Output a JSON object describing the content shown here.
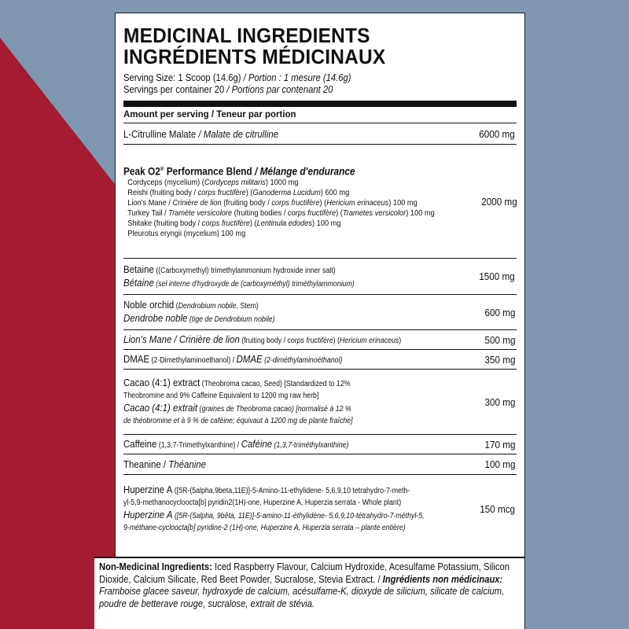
{
  "colors": {
    "background_blue": "#7f97b1",
    "background_red": "#a51c30",
    "label_bg": "#ffffff",
    "ink": "#111111"
  },
  "title_en": "MEDICINAL INGREDIENTS",
  "title_fr": "INGRÉDIENTS MÉDICINAUX",
  "serving_size_en": "Serving Size: 1 Scoop (14.6g)",
  "serving_size_fr": " / Portion : 1 mesure (14.6g)",
  "servings_en": "Servings per container 20",
  "servings_fr": " / Portions par contenant 20",
  "amount_header": "Amount per serving / Teneur par portion",
  "rows": {
    "citrulline": {
      "en": "L-Citrulline Malate",
      "fr": " / Malate de citrulline",
      "amount": "6000 mg"
    },
    "peak": {
      "title_en": "Peak O2",
      "title_mark": "®",
      "title_rest": " Performance Blend",
      "title_fr": " / Mélange d'endurance",
      "amount": "2000 mg",
      "items": [
        {
          "a": "Cordyceps (mycelium) (",
          "b": "Cordyceps militaris",
          "c": ") 1000 mg"
        },
        {
          "a": "Reishi (fruiting body / ",
          "b": "corps fructifère",
          "c": ") (",
          "d": "Ganoderma Lucidum",
          "e": ") 600 mg"
        },
        {
          "a": "Lion's Mane / ",
          "b": "Crinière de lion",
          "c": " (fruiting body / ",
          "d": "corps fructifère",
          "e": ") (",
          "f": "Hericium erinaceus",
          "g": ") 100 mg"
        },
        {
          "a": "Turkey Tail / ",
          "b": "Tramète versicolore",
          "c": " (fruiting bodies / ",
          "d": "corps fructifère",
          "e": ") (",
          "f": "Trametes versicolor",
          "g": ") 100 mg"
        },
        {
          "a": "Shitake (fruiting body / ",
          "b": "corps fructifère",
          "c": ") (",
          "d": "Lentinula edodes",
          "e": ") 100 mg"
        },
        {
          "a": "Pleurotus eryngii (mycelium) 100 mg"
        }
      ]
    },
    "betaine": {
      "en_a": "Betaine",
      "en_b": " ((Carboxymethyl) trimethylammonium hydroxide inner salt)",
      "fr_a": "Bétaine",
      "fr_b": " (sel interne d'hydroxyde de (carboxyméthyl) triméthylammonium)",
      "amount": "1500 mg"
    },
    "orchid": {
      "en_a": "Noble orchid",
      "en_b": " (",
      "en_c": "Dendrobium nobile",
      "en_d": ", Stem)",
      "fr_a": "Dendrobe noble",
      "fr_b": " (tige de Dendrobium nobile)",
      "amount": "600 mg"
    },
    "lions": {
      "a": "Lion's Mane / Crinière de lion",
      "b": " (fruiting body / ",
      "c": "corps fructifère",
      "d": ") (",
      "e": "Hericium erinaceus",
      "f": ")",
      "amount": "500 mg"
    },
    "dmae": {
      "a": "DMAE",
      "b": " (2-Dimethylaminoethanol) / ",
      "c": "DMAE",
      "d": " (2-diméthylaminoéthanol)",
      "amount": "350 mg"
    },
    "cacao": {
      "en_a": "Cacao (4:1) extract",
      "en_b": " (Theobroma cacao, Seed) [Standardized to 12%",
      "en_c": "Theobromine and 9% Caffeine Equivalent to 1200 mg raw herb]",
      "fr_a": "Cacao (4:1) extrait",
      "fr_b": " (graines de Theobroma cacao) [normalisé à 12 %",
      "fr_c": "de théobromine et à 9 % de caféine; équivaut à 1200 mg de plante fraîche]",
      "amount": "300 mg"
    },
    "caffeine": {
      "a": "Caffeine",
      "b": " (1,3,7-Trimethylxanthine) / ",
      "c": "Caféine",
      "d": " (1,3,7-triméthylxanthine)",
      "amount": "170 mg"
    },
    "theanine": {
      "a": "Theanine",
      "b": " / ",
      "c": "Théanine",
      "amount": "100 mg"
    },
    "huperzine": {
      "en_a": "Huperzine A",
      "en_b": " ([5R-(5alpha,9beta,11E)]-5-Amino-11-ethylidene- 5,6,9,10 tetrahydro-7-meth-",
      "en_c": "yl-5,9-methanocycloocta[b] pyridin2(1H)-one, Huperzine A, Huperzia serrata - Whole plant)",
      "fr_a": "Huperzine A",
      "fr_b": " ([5R-(5alpha, 9bêta, 11E)]-5-amino-11-éthylidène- 5,6,9,10-tétrahydro-7-méthyl-5,",
      "fr_c": "9-méthane-cycloocta[b] pyridine-2 (1H)-one, Huperzine A, Huperzia serrata – plante entière)",
      "amount": "150 mcg"
    }
  },
  "non_medicinal": {
    "label_en": "Non-Medicinal Ingredients:",
    "text_en": " Iced Raspberry Flavour, Calcium Hydroxide, Acesulfame Potassium, Silicon Dioxide, Calcium Silicate, Red Beet Powder, Sucralose, Stevia Extract. / ",
    "label_fr": "Ingrédients non médicinaux:",
    "text_fr": " Framboise glacee saveur, hydroxyde de calcium, acésulfame-K, dioxyde de silicium, silicate de calcium, poudre de betterave rouge, sucralose, extrait de stévia."
  }
}
